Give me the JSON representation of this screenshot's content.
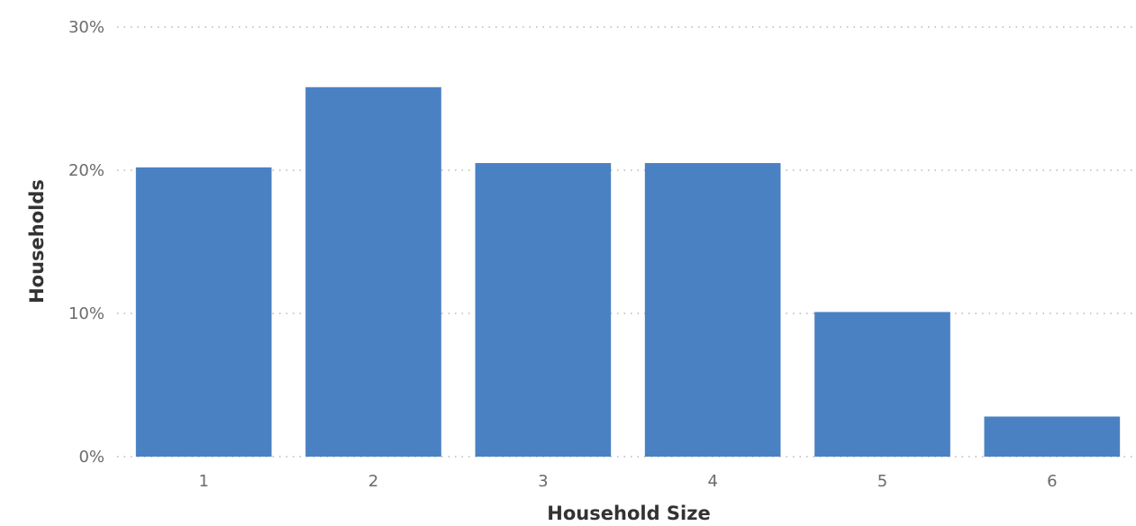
{
  "chart_data": {
    "type": "bar",
    "title": "",
    "xlabel": "Household Size",
    "ylabel": "Households",
    "categories": [
      "1",
      "2",
      "3",
      "4",
      "5",
      "6"
    ],
    "values": [
      20.2,
      25.8,
      20.5,
      20.5,
      10.1,
      2.8
    ],
    "ylim": [
      0,
      30
    ],
    "yticks": [
      0,
      10,
      20,
      30
    ],
    "ytick_labels": [
      "0%",
      "10%",
      "20%",
      "30%"
    ],
    "grid": true,
    "legend": "none",
    "bar_color": "#4a81c3",
    "grid_color": "#b8b8b8"
  }
}
